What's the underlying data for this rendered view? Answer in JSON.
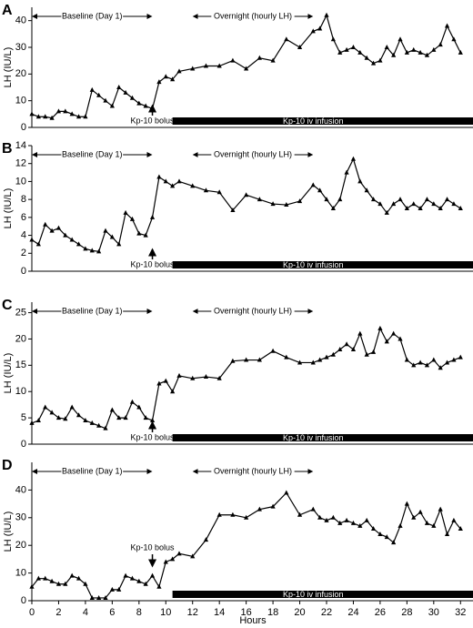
{
  "chart_data": [
    {
      "type": "line",
      "label": "A",
      "ylabel": "LH (IU/L)",
      "x": [
        0,
        0.5,
        1,
        1.5,
        2,
        2.5,
        3,
        3.5,
        4,
        4.5,
        5,
        5.5,
        6,
        6.5,
        7,
        7.5,
        8,
        8.5,
        9,
        9.5,
        10,
        10.5,
        11,
        12,
        13,
        14,
        15,
        16,
        17,
        18,
        19,
        20,
        21,
        21.5,
        22,
        22.5,
        23,
        23.5,
        24,
        24.5,
        25,
        25.5,
        26,
        26.5,
        27,
        27.5,
        28,
        28.5,
        29,
        29.5,
        30,
        30.5,
        31,
        31.5,
        32
      ],
      "series": [
        {
          "name": "LH",
          "color": "#000000",
          "values": [
            5,
            4,
            4,
            3.5,
            6,
            6,
            5,
            4,
            4,
            14,
            12,
            10,
            8,
            15,
            13,
            11,
            9,
            8,
            7,
            17,
            19,
            18,
            21,
            22,
            23,
            23,
            25,
            22,
            26,
            25,
            33,
            30,
            36,
            37,
            42,
            33,
            28,
            29,
            30,
            28,
            26,
            24,
            25,
            30,
            27,
            33,
            28,
            29,
            28,
            27,
            29,
            31,
            38,
            33,
            28
          ]
        }
      ],
      "xlim": [
        0,
        33
      ],
      "ylim": [
        0,
        45
      ],
      "yticks": [
        0,
        10,
        20,
        30,
        40
      ],
      "baseline": "Baseline (Day 1)",
      "overnight": "Overnight (hourly LH)",
      "bolus": "Kp-10 bolus",
      "infusion": "Kp-10 iv infusion"
    },
    {
      "type": "line",
      "label": "B",
      "ylabel": "LH (IU/L)",
      "x": [
        0,
        0.5,
        1,
        1.5,
        2,
        2.5,
        3,
        3.5,
        4,
        4.5,
        5,
        5.5,
        6,
        6.5,
        7,
        7.5,
        8,
        8.5,
        9,
        9.5,
        10,
        10.5,
        11,
        12,
        13,
        14,
        15,
        16,
        17,
        18,
        19,
        20,
        21,
        21.5,
        22,
        22.5,
        23,
        23.5,
        24,
        24.5,
        25,
        25.5,
        26,
        26.5,
        27,
        27.5,
        28,
        28.5,
        29,
        29.5,
        30,
        30.5,
        31,
        31.5,
        32
      ],
      "series": [
        {
          "name": "LH",
          "color": "#000000",
          "values": [
            3.5,
            3,
            5.2,
            4.5,
            4.8,
            4,
            3.5,
            3,
            2.5,
            2.3,
            2.2,
            4.5,
            3.8,
            3,
            6.5,
            5.8,
            4.2,
            4,
            6,
            10.5,
            10,
            9.5,
            10,
            9.5,
            9,
            8.8,
            6.8,
            8.5,
            8,
            7.5,
            7.4,
            7.8,
            9.6,
            9,
            8,
            7,
            8,
            11,
            12.5,
            10,
            9,
            8,
            7.5,
            6.5,
            7.5,
            8,
            7,
            7.5,
            7,
            8,
            7.5,
            7,
            8,
            7.5,
            7
          ]
        }
      ],
      "xlim": [
        0,
        33
      ],
      "ylim": [
        0,
        14
      ],
      "yticks": [
        0,
        2,
        4,
        6,
        8,
        10,
        12,
        14
      ],
      "baseline": "Baseline (Day 1)",
      "overnight": "Overnight (hourly LH)",
      "bolus": "Kp-10 bolus",
      "infusion": "Kp-10 iv infusion"
    },
    {
      "type": "line",
      "label": "C",
      "ylabel": "LH (IU/L)",
      "x": [
        0,
        0.5,
        1,
        1.5,
        2,
        2.5,
        3,
        3.5,
        4,
        4.5,
        5,
        5.5,
        6,
        6.5,
        7,
        7.5,
        8,
        8.5,
        9,
        9.5,
        10,
        10.5,
        11,
        12,
        13,
        14,
        15,
        16,
        17,
        18,
        19,
        20,
        21,
        21.5,
        22,
        22.5,
        23,
        23.5,
        24,
        24.5,
        25,
        25.5,
        26,
        26.5,
        27,
        27.5,
        28,
        28.5,
        29,
        29.5,
        30,
        30.5,
        31,
        31.5,
        32
      ],
      "series": [
        {
          "name": "LH",
          "color": "#000000",
          "values": [
            4,
            4.5,
            7,
            6,
            5,
            4.8,
            7,
            5.5,
            4.5,
            4,
            3.5,
            3,
            6.5,
            5,
            5,
            8,
            7,
            5,
            4.5,
            11.5,
            12,
            10,
            13,
            12.5,
            12.8,
            12.5,
            15.8,
            16,
            16,
            17.7,
            16.5,
            15.5,
            15.5,
            16,
            16.5,
            17,
            18,
            19,
            18,
            21,
            17,
            17.5,
            22,
            19.5,
            21,
            20,
            16,
            15,
            15.5,
            15,
            16,
            14.5,
            15.5,
            16,
            16.5
          ]
        }
      ],
      "xlim": [
        0,
        33
      ],
      "ylim": [
        0,
        27
      ],
      "yticks": [
        0,
        5,
        10,
        15,
        20,
        25
      ],
      "baseline": "Baseline (Day 1)",
      "overnight": "Overnight (hourly LH)",
      "bolus": "Kp-10 bolus",
      "infusion": "Kp-10 iv infusion"
    },
    {
      "type": "line",
      "label": "D",
      "ylabel": "LH (IU/L)",
      "xlabel": "Hours",
      "x": [
        0,
        0.5,
        1,
        1.5,
        2,
        2.5,
        3,
        3.5,
        4,
        4.5,
        5,
        5.5,
        6,
        6.5,
        7,
        7.5,
        8,
        8.5,
        9,
        9.5,
        10,
        10.5,
        11,
        12,
        13,
        14,
        15,
        16,
        17,
        18,
        19,
        20,
        21,
        21.5,
        22,
        22.5,
        23,
        23.5,
        24,
        24.5,
        25,
        25.5,
        26,
        26.5,
        27,
        27.5,
        28,
        28.5,
        29,
        29.5,
        30,
        30.5,
        31,
        31.5,
        32
      ],
      "series": [
        {
          "name": "LH",
          "color": "#000000",
          "values": [
            5,
            8,
            8,
            7,
            6,
            6,
            9,
            8,
            6,
            1,
            1,
            1,
            4,
            4,
            9,
            8,
            7,
            6,
            9,
            5,
            14,
            15,
            17,
            16,
            22,
            31,
            31,
            30,
            33,
            34,
            39,
            31,
            33,
            30,
            29,
            30,
            28,
            29,
            28,
            27,
            29,
            26,
            24,
            23,
            21,
            27,
            35,
            30,
            32,
            28,
            27,
            33,
            24,
            29,
            26
          ]
        }
      ],
      "xlim": [
        0,
        33
      ],
      "xticks": [
        0,
        2,
        4,
        6,
        8,
        10,
        12,
        14,
        16,
        18,
        20,
        22,
        24,
        26,
        28,
        30,
        32
      ],
      "ylim": [
        0,
        50
      ],
      "yticks": [
        0,
        10,
        20,
        30,
        40
      ],
      "baseline": "Baseline (Day 1)",
      "overnight": "Overnight (hourly LH)",
      "bolus": "Kp-10 bolus",
      "infusion": "Kp-10 iv infusion"
    }
  ]
}
